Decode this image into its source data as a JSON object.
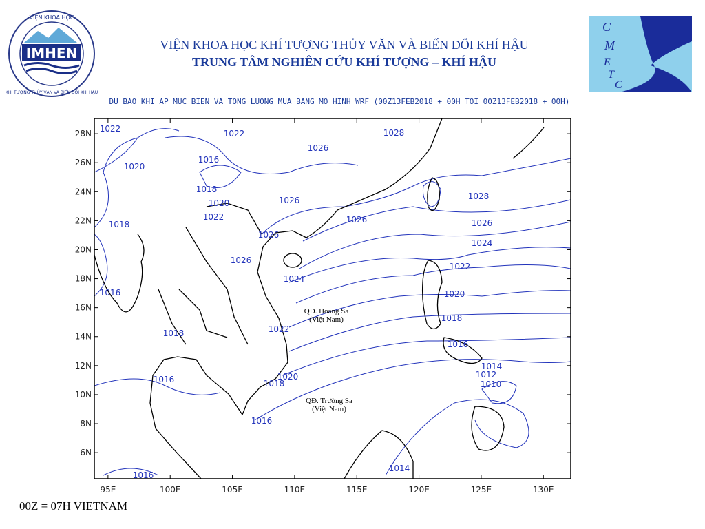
{
  "header": {
    "line1": "VIỆN KHOA HỌC KHÍ TƯỢNG THỦY VĂN VÀ BIẾN ĐỔI KHÍ HẬU",
    "line2": "TRUNG TÂM NGHIÊN CỨU KHÍ TƯỢNG – KHÍ HẬU",
    "subtitle": "DU BAO KHI AP MUC BIEN VA TONG LUONG MUA BANG MO HINH WRF (00Z13FEB2018 + 00H TOI 00Z13FEB2018 + 00H)"
  },
  "logo_left": {
    "top": "VIỆN KHOA HỌC",
    "name": "IMHEN",
    "bottom": "KHÍ TƯỢNG THỦY VĂN VÀ BIẾN ĐỔI KHÍ HẬU"
  },
  "logo_right": {
    "letters": [
      "C",
      "M",
      "E",
      "T",
      "C"
    ]
  },
  "chart_data": {
    "type": "map",
    "xlim": [
      93.9,
      132.2
    ],
    "ylim": [
      4.2,
      29.05
    ],
    "xticks": [
      {
        "value": 95,
        "label": "95E"
      },
      {
        "value": 100,
        "label": "100E"
      },
      {
        "value": 105,
        "label": "105E"
      },
      {
        "value": 110,
        "label": "110E"
      },
      {
        "value": 115,
        "label": "115E"
      },
      {
        "value": 120,
        "label": "120E"
      },
      {
        "value": 125,
        "label": "125E"
      },
      {
        "value": 130,
        "label": "130E"
      }
    ],
    "yticks": [
      {
        "value": 6,
        "label": "6N"
      },
      {
        "value": 8,
        "label": "8N"
      },
      {
        "value": 10,
        "label": "10N"
      },
      {
        "value": 12,
        "label": "12N"
      },
      {
        "value": 14,
        "label": "14N"
      },
      {
        "value": 16,
        "label": "16N"
      },
      {
        "value": 18,
        "label": "18N"
      },
      {
        "value": 20,
        "label": "20N"
      },
      {
        "value": 22,
        "label": "22N"
      },
      {
        "value": 24,
        "label": "24N"
      },
      {
        "value": 26,
        "label": "26N"
      },
      {
        "value": 28,
        "label": "28N"
      }
    ],
    "isobar_labels": [
      "1022",
      "1022",
      "1028",
      "1026",
      "1016",
      "1020",
      "1018",
      "1020",
      "1026",
      "1022",
      "1018",
      "1026",
      "1028",
      "1026",
      "1026",
      "1024",
      "1026",
      "1022",
      "1024",
      "1020",
      "1016",
      "1018",
      "1022",
      "1018",
      "1016",
      "1014",
      "1012",
      "1020",
      "1016",
      "1018",
      "1010",
      "1016",
      "1014",
      "1016"
    ],
    "places": [
      {
        "name": "QĐ. Hoàng Sa",
        "country": "(Việt Nam)"
      },
      {
        "name": "QĐ. Trường Sa",
        "country": "(Việt Nam)"
      }
    ]
  },
  "footer": "00Z = 07H VIETNAM"
}
